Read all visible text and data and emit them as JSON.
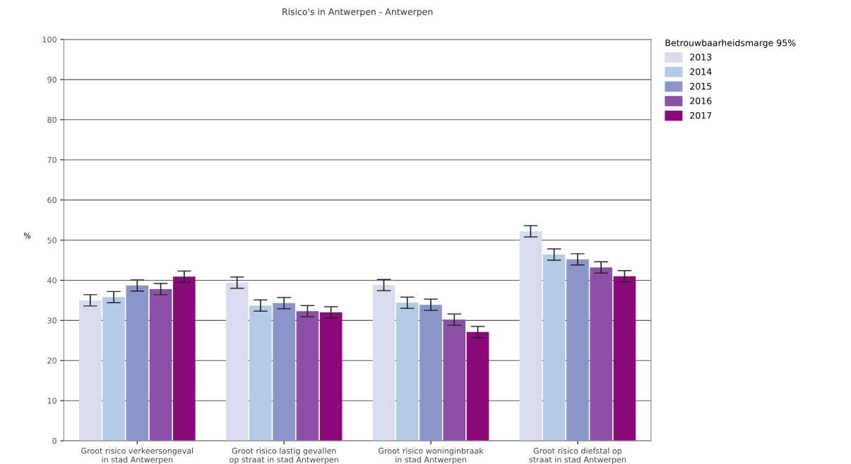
{
  "chart_data": {
    "type": "bar",
    "title": "Risico's in Antwerpen - Antwerpen",
    "ylabel": "%",
    "legend_title": "Betrouwbaarheidsmarge 95%",
    "legend": "top right",
    "categories": [
      "Groot risico verkeersongeval\nin stad Antwerpen",
      "Groot risico lastig gevallen\nop straat in stad Antwerpen",
      "Groot risico woninginbraak\nin stad Antwerpen",
      "Groot risico diefstal op\nstraat in stad Antwerpen"
    ],
    "series": [
      {
        "name": "2013",
        "color": "#d9dcef",
        "values": [
          35.0,
          39.4,
          38.8,
          52.2
        ],
        "errors": [
          1.4,
          1.4,
          1.4,
          1.4
        ]
      },
      {
        "name": "2014",
        "color": "#b3cbe6",
        "values": [
          35.8,
          33.7,
          34.4,
          46.4
        ],
        "errors": [
          1.4,
          1.4,
          1.4,
          1.4
        ]
      },
      {
        "name": "2015",
        "color": "#8b95c9",
        "values": [
          38.7,
          34.3,
          33.9,
          45.2
        ],
        "errors": [
          1.4,
          1.4,
          1.4,
          1.4
        ]
      },
      {
        "name": "2016",
        "color": "#8e4fa8",
        "values": [
          37.8,
          32.3,
          30.2,
          43.2
        ],
        "errors": [
          1.4,
          1.4,
          1.4,
          1.4
        ]
      },
      {
        "name": "2017",
        "color": "#8b0a7a",
        "values": [
          40.9,
          32.0,
          27.1,
          41.0
        ],
        "errors": [
          1.4,
          1.4,
          1.4,
          1.4
        ]
      }
    ],
    "ylim": [
      0,
      100
    ],
    "yticks": [
      0,
      10,
      20,
      30,
      40,
      50,
      60,
      70,
      80,
      90,
      100
    ],
    "grid": "y"
  }
}
